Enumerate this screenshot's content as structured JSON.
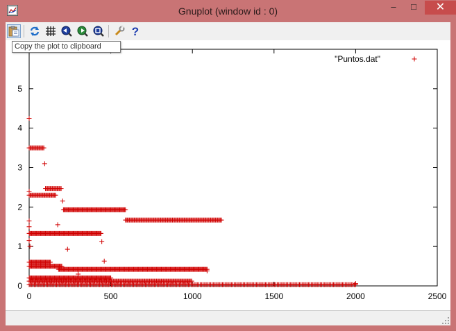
{
  "window": {
    "title": "Gnuplot (window id : 0)",
    "minimize_label": "–",
    "maximize_label": "□",
    "close_label": "✕"
  },
  "toolbar": {
    "buttons": [
      {
        "name": "copy-clipboard",
        "icon": "clipboard-icon"
      },
      {
        "name": "replot",
        "icon": "refresh-icon"
      },
      {
        "name": "grid",
        "icon": "grid-icon"
      },
      {
        "name": "zoom-previous",
        "icon": "zoom-back-icon"
      },
      {
        "name": "zoom-next",
        "icon": "zoom-forward-icon"
      },
      {
        "name": "autoscale",
        "icon": "zoom-fit-icon"
      },
      {
        "name": "options",
        "icon": "wrench-icon"
      },
      {
        "name": "help",
        "icon": "help-icon"
      }
    ],
    "tooltip": "Copy the plot to clipboard"
  },
  "colors": {
    "frame": "#c97475",
    "close_button": "#c74c4c",
    "points": "#d00000"
  },
  "chart_data": {
    "type": "scatter",
    "title": "",
    "xlabel": "",
    "ylabel": "",
    "xlim": [
      0,
      2500
    ],
    "ylim": [
      0,
      6
    ],
    "x_ticks": [
      0,
      500,
      1000,
      1500,
      2000,
      2500
    ],
    "y_ticks": [
      0,
      1,
      2,
      3,
      4,
      5
    ],
    "x_tick_labels": [
      "0",
      "500",
      "1000",
      "1500",
      "2000",
      "2500"
    ],
    "y_tick_labels": [
      "0",
      "1",
      "2",
      "3",
      "4",
      "5"
    ],
    "legend_position": "top-right",
    "point_marker": "+",
    "series": [
      {
        "name": "\"Puntos.dat\"",
        "segments": [
          {
            "x_start": 0,
            "x_end": 90,
            "step": 6,
            "y": 3.5
          },
          {
            "x_start": 100,
            "x_end": 200,
            "step": 6,
            "y": 2.47
          },
          {
            "x_start": 0,
            "x_end": 165,
            "step": 6,
            "y": 2.3
          },
          {
            "x_start": 210,
            "x_end": 590,
            "step": 5,
            "y": 1.93
          },
          {
            "x_start": 590,
            "x_end": 1180,
            "step": 6,
            "y": 1.67
          },
          {
            "x_start": 0,
            "x_end": 440,
            "step": 5,
            "y": 1.33
          },
          {
            "x_start": 0,
            "x_end": 130,
            "step": 5,
            "y": 0.6
          },
          {
            "x_start": 0,
            "x_end": 200,
            "step": 5,
            "y": 0.5
          },
          {
            "x_start": 180,
            "x_end": 1090,
            "step": 5,
            "y": 0.42
          },
          {
            "x_start": 0,
            "x_end": 500,
            "step": 5,
            "y": 0.2
          },
          {
            "x_start": 0,
            "x_end": 1000,
            "step": 6,
            "y": 0.12
          },
          {
            "x_start": 0,
            "x_end": 2000,
            "step": 8,
            "y": 0.03
          }
        ],
        "points": [
          {
            "x": 0,
            "y": 4.25
          },
          {
            "x": 95,
            "y": 3.1
          },
          {
            "x": 0,
            "y": 2.4
          },
          {
            "x": 205,
            "y": 2.15
          },
          {
            "x": 175,
            "y": 1.55
          },
          {
            "x": 0,
            "y": 1.65
          },
          {
            "x": 0,
            "y": 1.5
          },
          {
            "x": 0,
            "y": 1.15
          },
          {
            "x": 5,
            "y": 1.0
          },
          {
            "x": 445,
            "y": 1.12
          },
          {
            "x": 235,
            "y": 0.93
          },
          {
            "x": 460,
            "y": 0.63
          },
          {
            "x": 1090,
            "y": 0.38
          },
          {
            "x": 300,
            "y": 0.3
          },
          {
            "x": 2000,
            "y": 0.06
          }
        ]
      }
    ]
  }
}
